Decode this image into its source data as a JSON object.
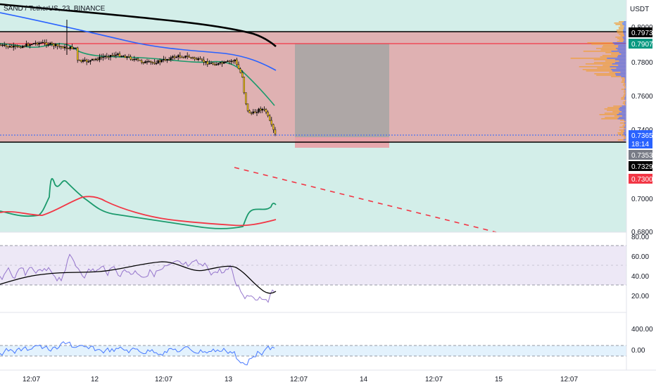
{
  "symbol_title": "SAND / TetherUS, 23, BINANCE",
  "currency_label": "USDT",
  "colors": {
    "bg_top": "#d3eee9",
    "zone_red": "#e1a6a8",
    "zone_grey": "#a9a6a4",
    "ema_green": "#1b9a6c",
    "ma_blue": "#2962ff",
    "ma_black": "#000000",
    "level_red": "#f23645",
    "rsi_line": "#7e57c2",
    "rsi_band": "#ede8f6",
    "lower_line": "#2962ff",
    "lower_band": "#e3f2fd",
    "volume_profile": "#f0a040",
    "volume_profile_blue": "#5b6ee1"
  },
  "price_axis": {
    "ticks": [
      "0.8000",
      "0.7800",
      "0.7600",
      "0.7400",
      "0.7000",
      "0.6800"
    ]
  },
  "price_badges": [
    {
      "label": "0.7973",
      "bg": "#000000",
      "fg": "#ffffff"
    },
    {
      "label": "0.7907",
      "bg": "#089981",
      "fg": "#ffffff"
    },
    {
      "label": "0.7365",
      "bg": "#2962ff",
      "fg": "#ffffff",
      "sub": "18:14"
    },
    {
      "label": "0.7353",
      "bg": "#787b86",
      "fg": "#ffffff"
    },
    {
      "label": "0.7329",
      "bg": "#000000",
      "fg": "#ffffff"
    },
    {
      "label": "0.7300",
      "bg": "#f23645",
      "fg": "#ffffff"
    }
  ],
  "rsi_axis": {
    "ticks": [
      "80.00",
      "60.00",
      "40.00",
      "20.00"
    ]
  },
  "lower_axis": {
    "ticks": [
      "400.00",
      "0.00"
    ]
  },
  "time_axis": {
    "ticks": [
      "12:07",
      "12",
      "12:07",
      "13",
      "12:07",
      "14",
      "12:07",
      "15",
      "12:07"
    ]
  }
}
